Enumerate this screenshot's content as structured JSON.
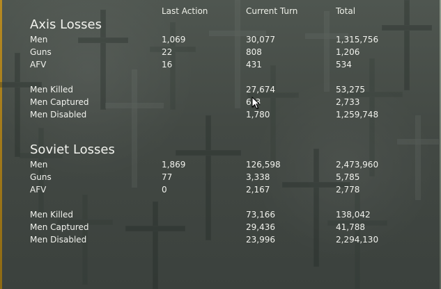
{
  "headers": {
    "last_action": "Last Action",
    "current_turn": "Current Turn",
    "total": "Total"
  },
  "axis": {
    "title": "Axis Losses",
    "men_label": "Men",
    "men_last_action": "1,069",
    "men_current_turn": "30,077",
    "men_total": "1,315,756",
    "guns_label": "Guns",
    "guns_last_action": "22",
    "guns_current_turn": "808",
    "guns_total": "1,206",
    "afv_label": "AFV",
    "afv_last_action": "16",
    "afv_current_turn": "431",
    "afv_total": "534",
    "killed_label": "Men Killed",
    "killed_current_turn": "27,674",
    "killed_total": "53,275",
    "captured_label": "Men Captured",
    "captured_current_turn": "6",
    "captured_current_turn_suffix": "3",
    "captured_total": "2,733",
    "disabled_label": "Men Disabled",
    "disabled_current_turn": "1,780",
    "disabled_total": "1,259,748"
  },
  "soviet": {
    "title": "Soviet Losses",
    "men_label": "Men",
    "men_last_action": "1,869",
    "men_current_turn": "126,598",
    "men_total": "2,473,960",
    "guns_label": "Guns",
    "guns_last_action": "77",
    "guns_current_turn": "3,338",
    "guns_total": "5,785",
    "afv_label": "AFV",
    "afv_last_action": "0",
    "afv_current_turn": "2,167",
    "afv_total": "2,778",
    "killed_label": "Men Killed",
    "killed_current_turn": "73,166",
    "killed_total": "138,042",
    "captured_label": "Men Captured",
    "captured_current_turn": "29,436",
    "captured_total": "41,788",
    "disabled_label": "Men Disabled",
    "disabled_current_turn": "23,996",
    "disabled_total": "2,294,130"
  },
  "colors": {
    "text": "#f1f2ed",
    "left_accent": "#b78a22",
    "background": "#434944"
  },
  "icons": {
    "cursor": "mouse-pointer-icon"
  }
}
